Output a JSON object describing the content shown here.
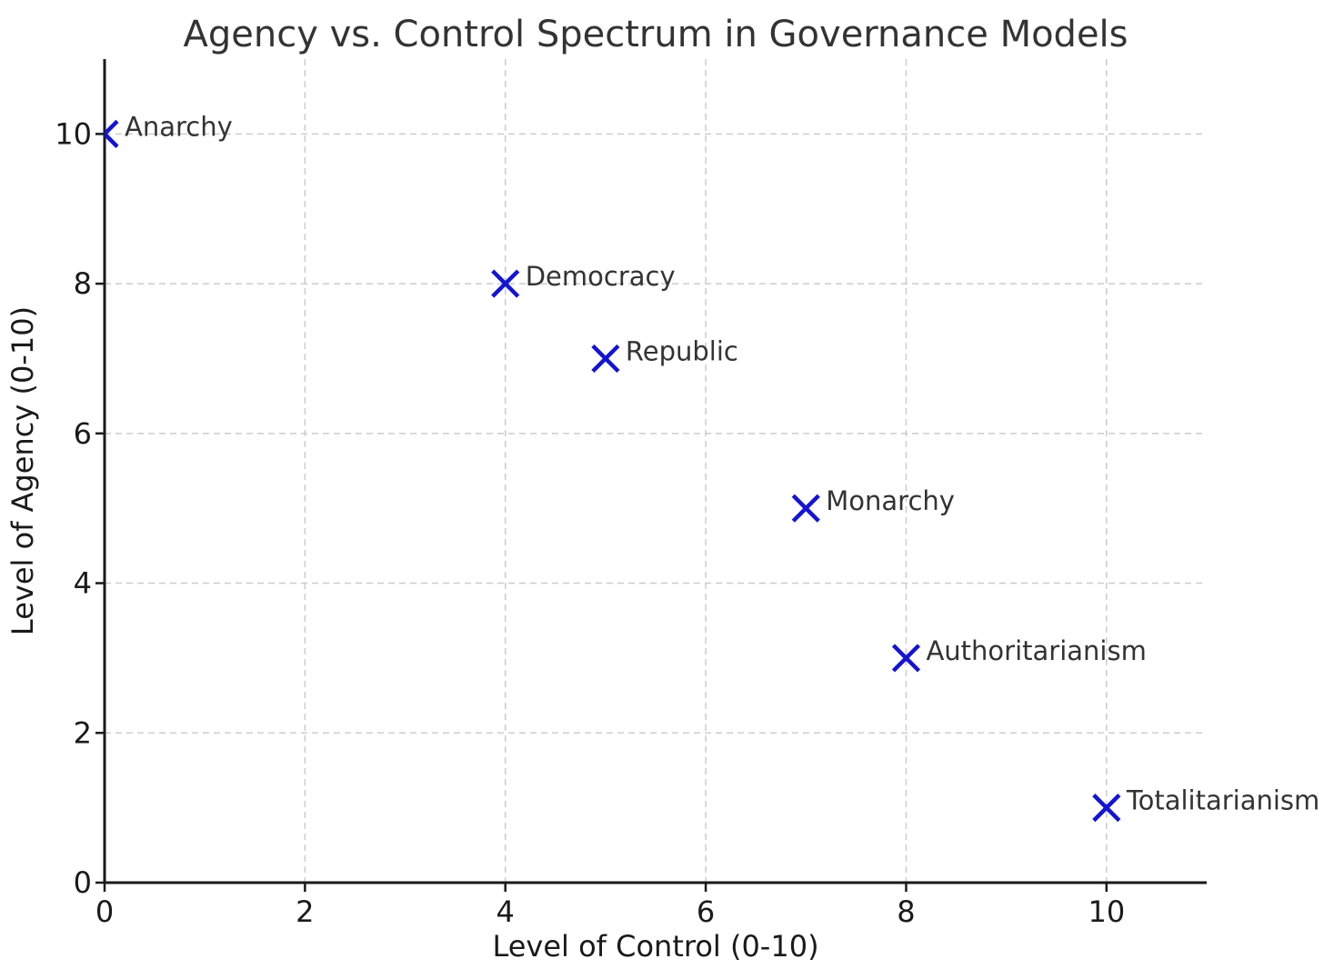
{
  "chart_data": {
    "type": "scatter",
    "title": "Agency vs. Control Spectrum in Governance Models",
    "xlabel": "Level of Control (0-10)",
    "ylabel": "Level of Agency (0-10)",
    "xlim": [
      0,
      11
    ],
    "ylim": [
      0,
      11
    ],
    "xticks": [
      0,
      2,
      4,
      6,
      8,
      10
    ],
    "yticks": [
      0,
      2,
      4,
      6,
      8,
      10
    ],
    "grid": true,
    "grid_style": "dashed",
    "legend": "none",
    "marker": "x",
    "colors": {
      "marker": "#1414d2",
      "grid": "#cccccc",
      "spine": "#1a1a1a",
      "title": "#333333",
      "text": "#1a1a1a",
      "point_label": "#333333",
      "background": "#ffffff"
    },
    "points": [
      {
        "label": "Anarchy",
        "x": 0,
        "y": 10
      },
      {
        "label": "Democracy",
        "x": 4,
        "y": 8
      },
      {
        "label": "Republic",
        "x": 5,
        "y": 7
      },
      {
        "label": "Monarchy",
        "x": 7,
        "y": 5
      },
      {
        "label": "Authoritarianism",
        "x": 8,
        "y": 3
      },
      {
        "label": "Totalitarianism",
        "x": 10,
        "y": 1
      }
    ]
  }
}
